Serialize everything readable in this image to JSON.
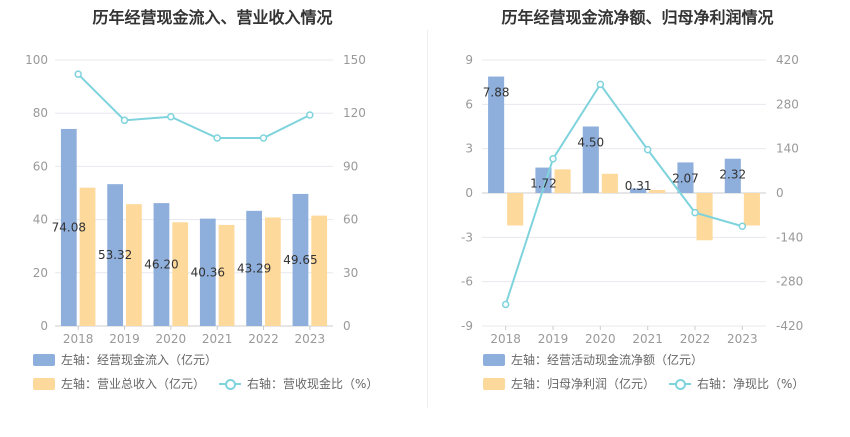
{
  "chart_data": [
    {
      "type": "bar",
      "title": "历年经营现金流入、营业收入情况",
      "categories": [
        "2018",
        "2019",
        "2020",
        "2021",
        "2022",
        "2023"
      ],
      "y_left": {
        "ylim": [
          0,
          100
        ],
        "ticks": [
          0,
          20,
          40,
          60,
          80,
          100
        ]
      },
      "y_right": {
        "ylim": [
          0,
          150
        ],
        "ticks": [
          0,
          30,
          60,
          90,
          120,
          150
        ]
      },
      "series": [
        {
          "name": "左轴：经营现金流入（亿元）",
          "type": "bar",
          "axis": "left",
          "color": "#8eaedc",
          "values": [
            74.08,
            53.32,
            46.2,
            40.36,
            43.29,
            49.65
          ],
          "labels": [
            "74.08",
            "53.32",
            "46.20",
            "40.36",
            "43.29",
            "49.65"
          ]
        },
        {
          "name": "左轴：营业总收入（亿元）",
          "type": "bar",
          "axis": "left",
          "color": "#fdd99b",
          "values": [
            52,
            45.8,
            39,
            38,
            40.8,
            41.5
          ]
        },
        {
          "name": "右轴：营收现金比（%）",
          "type": "line",
          "axis": "right",
          "color": "#7fd3dc",
          "values": [
            142,
            116,
            118,
            106,
            106,
            119
          ]
        }
      ],
      "grid": true,
      "legend": "bottom"
    },
    {
      "type": "bar",
      "title": "历年经营现金流净额、归母净利润情况",
      "categories": [
        "2018",
        "2019",
        "2020",
        "2021",
        "2022",
        "2023"
      ],
      "y_left": {
        "ylim": [
          -9,
          9
        ],
        "ticks": [
          -9,
          -6,
          -3,
          0,
          3,
          6,
          9
        ]
      },
      "y_right": {
        "ylim": [
          -420,
          420
        ],
        "ticks": [
          -420,
          -280,
          -140,
          0,
          140,
          280,
          420
        ]
      },
      "series": [
        {
          "name": "左轴：经营活动现金流净额（亿元）",
          "type": "bar",
          "axis": "left",
          "color": "#8eaedc",
          "values": [
            7.88,
            1.72,
            4.5,
            0.31,
            2.07,
            2.32
          ],
          "labels": [
            "7.88",
            "1.72",
            "4.50",
            "0.31",
            "2.07",
            "2.32"
          ]
        },
        {
          "name": "左轴：归母净利润（亿元）",
          "type": "bar",
          "axis": "left",
          "color": "#fdd99b",
          "values": [
            -2.2,
            1.6,
            1.3,
            0.2,
            -3.2,
            -2.2
          ]
        },
        {
          "name": "右轴：净现比（%）",
          "type": "line",
          "axis": "right",
          "color": "#7fd3dc",
          "values": [
            -352,
            108,
            343,
            137,
            -62,
            -105
          ]
        }
      ],
      "grid": true,
      "legend": "bottom"
    }
  ]
}
